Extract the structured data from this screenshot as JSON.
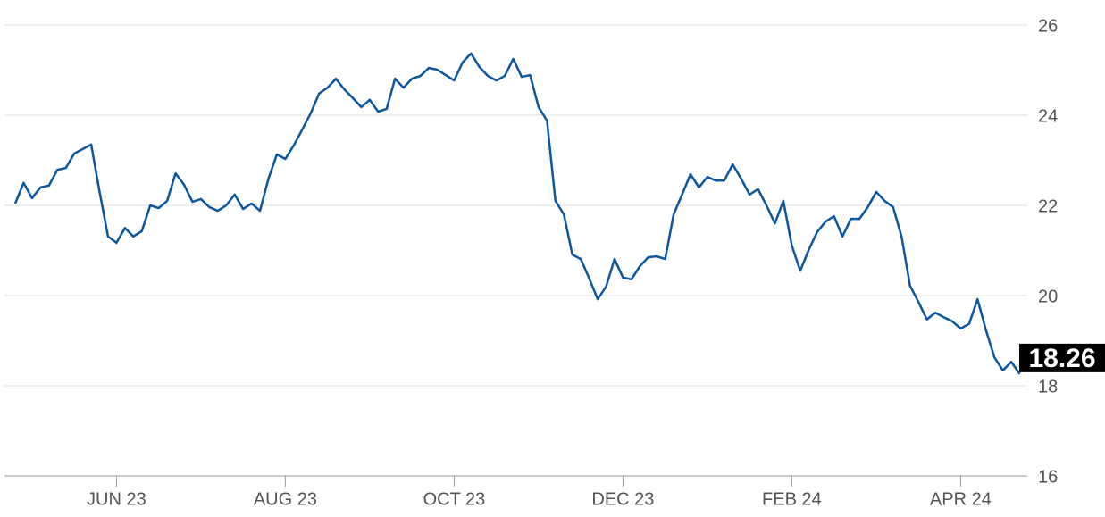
{
  "chart_data": {
    "type": "line",
    "categories": [
      null,
      null,
      null,
      null,
      null,
      null,
      null,
      null,
      null,
      null,
      null,
      null,
      "JUN 23",
      null,
      null,
      null,
      null,
      null,
      null,
      null,
      null,
      null,
      null,
      null,
      null,
      null,
      null,
      null,
      null,
      null,
      null,
      null,
      "AUG 23",
      null,
      null,
      null,
      null,
      null,
      null,
      null,
      null,
      null,
      null,
      null,
      null,
      null,
      null,
      null,
      null,
      null,
      null,
      null,
      "OCT 23",
      null,
      null,
      null,
      null,
      null,
      null,
      null,
      null,
      null,
      null,
      null,
      null,
      null,
      null,
      null,
      null,
      null,
      null,
      null,
      "DEC 23",
      null,
      null,
      null,
      null,
      null,
      null,
      null,
      null,
      null,
      null,
      null,
      null,
      null,
      null,
      null,
      null,
      null,
      null,
      null,
      "FEB 24",
      null,
      null,
      null,
      null,
      null,
      null,
      null,
      null,
      null,
      null,
      null,
      null,
      null,
      null,
      null,
      null,
      null,
      null,
      null,
      "APR 24",
      null,
      null,
      null,
      null,
      null,
      null,
      null
    ],
    "values": [
      22.04,
      22.5,
      22.16,
      22.4,
      22.44,
      22.79,
      22.83,
      23.15,
      23.25,
      23.35,
      22.3,
      21.31,
      21.17,
      21.5,
      21.31,
      21.43,
      22.0,
      21.94,
      22.1,
      22.71,
      22.46,
      22.08,
      22.14,
      21.96,
      21.88,
      22.0,
      22.24,
      21.92,
      22.04,
      21.88,
      22.59,
      23.13,
      23.03,
      23.33,
      23.68,
      24.04,
      24.48,
      24.61,
      24.81,
      24.57,
      24.38,
      24.18,
      24.34,
      24.08,
      24.14,
      24.81,
      24.61,
      24.81,
      24.87,
      25.05,
      25.01,
      24.89,
      24.77,
      25.17,
      25.37,
      25.07,
      24.87,
      24.77,
      24.87,
      25.25,
      24.85,
      24.89,
      24.18,
      23.88,
      22.1,
      21.8,
      20.91,
      20.81,
      20.38,
      19.92,
      20.2,
      20.81,
      20.4,
      20.36,
      20.65,
      20.85,
      20.87,
      20.81,
      21.8,
      22.24,
      22.69,
      22.4,
      22.63,
      22.55,
      22.55,
      22.91,
      22.59,
      22.24,
      22.36,
      22.0,
      21.6,
      22.1,
      21.11,
      20.55,
      21.01,
      21.41,
      21.64,
      21.76,
      21.31,
      21.7,
      21.7,
      21.96,
      22.3,
      22.1,
      21.96,
      21.31,
      20.22,
      19.86,
      19.47,
      19.62,
      19.52,
      19.43,
      19.27,
      19.37,
      19.92,
      19.23,
      18.63,
      18.34,
      18.53,
      18.26
    ],
    "color": "#0b56a2",
    "ylim": [
      16,
      26
    ],
    "yticks": [
      16,
      18,
      20,
      22,
      24,
      26
    ],
    "grid": true,
    "yaxis_position": "right",
    "last_value_label": true
  }
}
